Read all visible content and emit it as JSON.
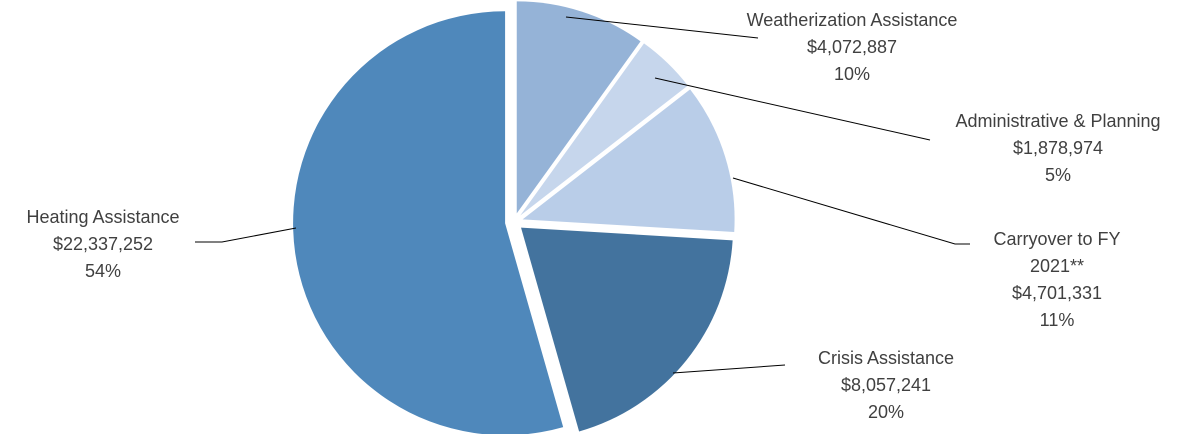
{
  "chart_data": {
    "type": "pie",
    "title": "",
    "slices": [
      {
        "label": "Weatherization Assistance",
        "label_lines": [
          "Weatherization Assistance"
        ],
        "amount": "$4,072,887",
        "percent": "10%",
        "value": 4072887,
        "color": "#95b3d7"
      },
      {
        "label": "Administrative & Planning",
        "label_lines": [
          "Administrative & Planning"
        ],
        "amount": "$1,878,974",
        "percent": "5%",
        "value": 1878974,
        "color": "#c6d6ec"
      },
      {
        "label": "Carryover to FY 2021**",
        "label_lines": [
          "Carryover to FY",
          "2021**"
        ],
        "amount": "$4,701,331",
        "percent": "11%",
        "value": 4701331,
        "color": "#b9cde8"
      },
      {
        "label": "Crisis Assistance",
        "label_lines": [
          "Crisis Assistance"
        ],
        "amount": "$8,057,241",
        "percent": "20%",
        "value": 8057241,
        "color": "#43739e"
      },
      {
        "label": "Heating Assistance",
        "label_lines": [
          "Heating Assistance"
        ],
        "amount": "$22,337,252",
        "percent": "54%",
        "value": 22337252,
        "color": "#4f88bb"
      }
    ]
  }
}
